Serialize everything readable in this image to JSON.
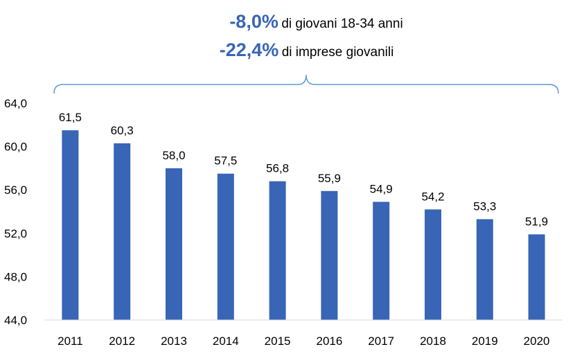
{
  "annotations": [
    {
      "value": "-8,0%",
      "text": "di giovani 18-34 anni"
    },
    {
      "value": "-22,4%",
      "text": "di imprese giovanili"
    }
  ],
  "colors": {
    "bar": "#3865b5",
    "brace": "#5b9bd5",
    "highlight": "#3865b5",
    "axis": "#d9d9d9"
  },
  "chart_data": {
    "type": "bar",
    "categories": [
      "2011",
      "2012",
      "2013",
      "2014",
      "2015",
      "2016",
      "2017",
      "2018",
      "2019",
      "2020"
    ],
    "values": [
      61.5,
      60.3,
      58.0,
      57.5,
      56.8,
      55.9,
      54.9,
      54.2,
      53.3,
      51.9
    ],
    "data_labels": [
      "61,5",
      "60,3",
      "58,0",
      "57,5",
      "56,8",
      "55,9",
      "54,9",
      "54,2",
      "53,3",
      "51,9"
    ],
    "ylim": [
      44,
      64
    ],
    "yticks": [
      "44,0",
      "48,0",
      "52,0",
      "56,0",
      "60,0",
      "64,0"
    ],
    "ytick_values": [
      44,
      48,
      52,
      56,
      60,
      64
    ],
    "grid": false,
    "legend": "none"
  }
}
